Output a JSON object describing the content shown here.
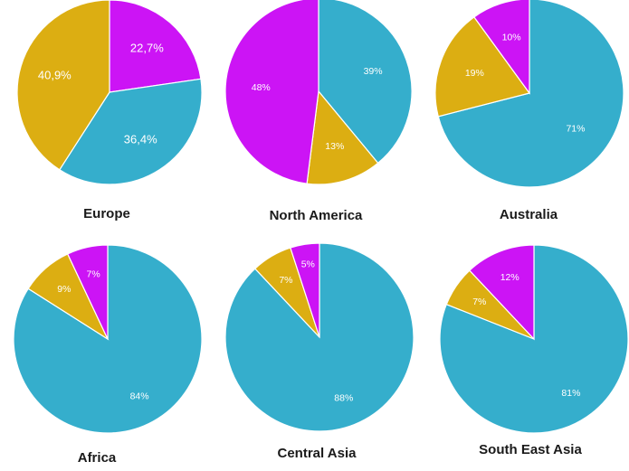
{
  "colors": {
    "blue": "#35aecc",
    "gold": "#dcae12",
    "purple": "#cc14f5"
  },
  "chart_data": [
    {
      "type": "pie",
      "title": "Europe",
      "slices": [
        {
          "value": 22.7,
          "label": "22,7%",
          "color": "#cc14f5"
        },
        {
          "value": 36.4,
          "label": "36,4%",
          "color": "#35aecc"
        },
        {
          "value": 40.9,
          "label": "40,9%",
          "color": "#dcae12"
        }
      ]
    },
    {
      "type": "pie",
      "title": "North America",
      "slices": [
        {
          "value": 39,
          "label": "39%",
          "color": "#35aecc"
        },
        {
          "value": 13,
          "label": "13%",
          "color": "#dcae12"
        },
        {
          "value": 48,
          "label": "48%",
          "color": "#cc14f5"
        }
      ]
    },
    {
      "type": "pie",
      "title": "Australia",
      "slices": [
        {
          "value": 71,
          "label": "71%",
          "color": "#35aecc"
        },
        {
          "value": 19,
          "label": "19%",
          "color": "#dcae12"
        },
        {
          "value": 10,
          "label": "10%",
          "color": "#cc14f5"
        }
      ]
    },
    {
      "type": "pie",
      "title": "Africa",
      "slices": [
        {
          "value": 84,
          "label": "84%",
          "color": "#35aecc"
        },
        {
          "value": 9,
          "label": "9%",
          "color": "#dcae12"
        },
        {
          "value": 7,
          "label": "7%",
          "color": "#cc14f5"
        }
      ]
    },
    {
      "type": "pie",
      "title": "Central Asia",
      "slices": [
        {
          "value": 88,
          "label": "88%",
          "color": "#35aecc"
        },
        {
          "value": 7,
          "label": "7%",
          "color": "#dcae12"
        },
        {
          "value": 5,
          "label": "5%",
          "color": "#cc14f5"
        }
      ]
    },
    {
      "type": "pie",
      "title": "South East Asia",
      "slices": [
        {
          "value": 81,
          "label": "81%",
          "color": "#35aecc"
        },
        {
          "value": 7,
          "label": "7%",
          "color": "#dcae12"
        },
        {
          "value": 12,
          "label": "12%",
          "color": "#cc14f5"
        }
      ]
    }
  ]
}
